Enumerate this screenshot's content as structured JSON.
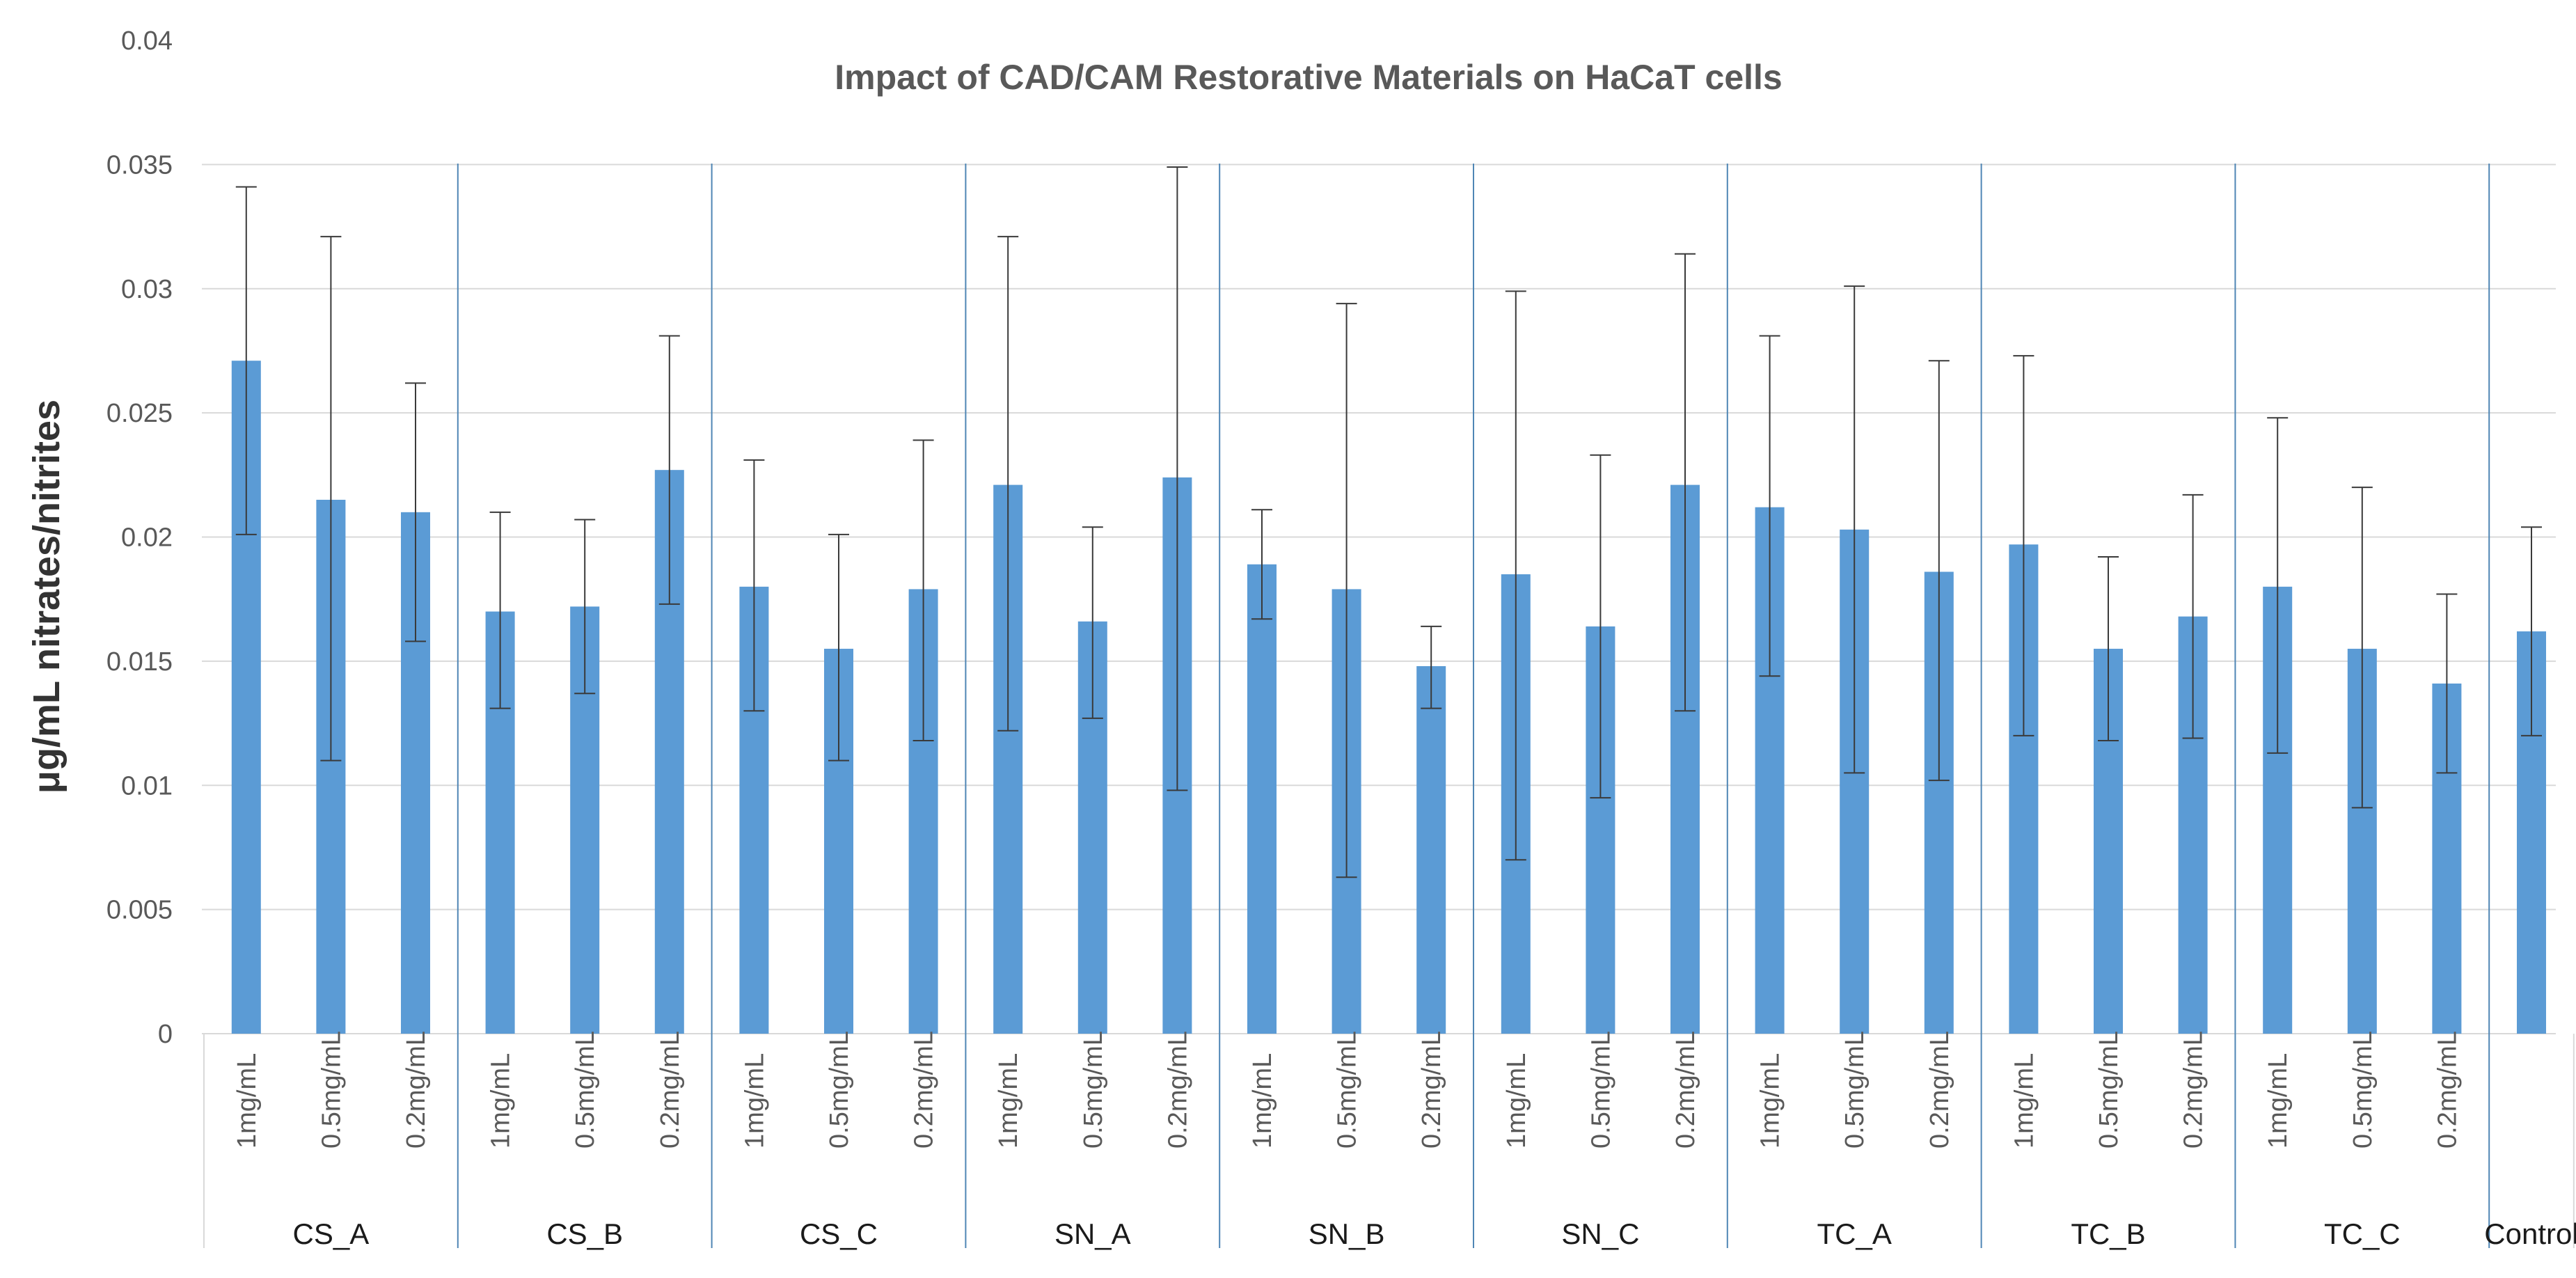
{
  "chart_data": {
    "type": "bar",
    "title": "Impact of CAD/CAM Restorative Materials on HaCaT cells",
    "ylabel": "μg/mL nitrates/nitrites",
    "xlabel": "",
    "ylim": [
      0,
      0.04
    ],
    "yticks": [
      "0",
      "0.005",
      "0.01",
      "0.015",
      "0.02",
      "0.025",
      "0.03",
      "0.035",
      "0.04"
    ],
    "grid": true,
    "colors": {
      "bar": "#5b9bd5",
      "grid": "#d9d9d9",
      "separator": "#4f86b5",
      "error": "#3a3a3a"
    },
    "groups": [
      {
        "name": "CS_A",
        "bars": [
          {
            "label": "1mg/mL",
            "value": 0.0271,
            "err_low": 0.0201,
            "err_high": 0.0341
          },
          {
            "label": "0.5mg/mL",
            "value": 0.0215,
            "err_low": 0.011,
            "err_high": 0.0321
          },
          {
            "label": "0.2mg/mL",
            "value": 0.021,
            "err_low": 0.0158,
            "err_high": 0.0262
          }
        ]
      },
      {
        "name": "CS_B",
        "bars": [
          {
            "label": "1mg/mL",
            "value": 0.017,
            "err_low": 0.0131,
            "err_high": 0.021
          },
          {
            "label": "0.5mg/mL",
            "value": 0.0172,
            "err_low": 0.0137,
            "err_high": 0.0207
          },
          {
            "label": "0.2mg/mL",
            "value": 0.0227,
            "err_low": 0.0173,
            "err_high": 0.0281
          }
        ]
      },
      {
        "name": "CS_C",
        "bars": [
          {
            "label": "1mg/mL",
            "value": 0.018,
            "err_low": 0.013,
            "err_high": 0.0231
          },
          {
            "label": "0.5mg/mL",
            "value": 0.0155,
            "err_low": 0.011,
            "err_high": 0.0201
          },
          {
            "label": "0.2mg/mL",
            "value": 0.0179,
            "err_low": 0.0118,
            "err_high": 0.0239
          }
        ]
      },
      {
        "name": "SN_A",
        "bars": [
          {
            "label": "1mg/mL",
            "value": 0.0221,
            "err_low": 0.0122,
            "err_high": 0.0321
          },
          {
            "label": "0.5mg/mL",
            "value": 0.0166,
            "err_low": 0.0127,
            "err_high": 0.0204
          },
          {
            "label": "0.2mg/mL",
            "value": 0.0224,
            "err_low": 0.0098,
            "err_high": 0.0349
          }
        ]
      },
      {
        "name": "SN_B",
        "bars": [
          {
            "label": "1mg/mL",
            "value": 0.0189,
            "err_low": 0.0167,
            "err_high": 0.0211
          },
          {
            "label": "0.5mg/mL",
            "value": 0.0179,
            "err_low": 0.0063,
            "err_high": 0.0294
          },
          {
            "label": "0.2mg/mL",
            "value": 0.0148,
            "err_low": 0.0131,
            "err_high": 0.0164
          }
        ]
      },
      {
        "name": "SN_C",
        "bars": [
          {
            "label": "1mg/mL",
            "value": 0.0185,
            "err_low": 0.007,
            "err_high": 0.0299
          },
          {
            "label": "0.5mg/mL",
            "value": 0.0164,
            "err_low": 0.0095,
            "err_high": 0.0233
          },
          {
            "label": "0.2mg/mL",
            "value": 0.0221,
            "err_low": 0.013,
            "err_high": 0.0314
          }
        ]
      },
      {
        "name": "TC_A",
        "bars": [
          {
            "label": "1mg/mL",
            "value": 0.0212,
            "err_low": 0.0144,
            "err_high": 0.0281
          },
          {
            "label": "0.5mg/mL",
            "value": 0.0203,
            "err_low": 0.0105,
            "err_high": 0.0301
          },
          {
            "label": "0.2mg/mL",
            "value": 0.0186,
            "err_low": 0.0102,
            "err_high": 0.0271
          }
        ]
      },
      {
        "name": "TC_B",
        "bars": [
          {
            "label": "1mg/mL",
            "value": 0.0197,
            "err_low": 0.012,
            "err_high": 0.0273
          },
          {
            "label": "0.5mg/mL",
            "value": 0.0155,
            "err_low": 0.0118,
            "err_high": 0.0192
          },
          {
            "label": "0.2mg/mL",
            "value": 0.0168,
            "err_low": 0.0119,
            "err_high": 0.0217
          }
        ]
      },
      {
        "name": "TC_C",
        "bars": [
          {
            "label": "1mg/mL",
            "value": 0.018,
            "err_low": 0.0113,
            "err_high": 0.0248
          },
          {
            "label": "0.5mg/mL",
            "value": 0.0155,
            "err_low": 0.0091,
            "err_high": 0.022
          },
          {
            "label": "0.2mg/mL",
            "value": 0.0141,
            "err_low": 0.0105,
            "err_high": 0.0177
          }
        ]
      },
      {
        "name": "Control",
        "bars": [
          {
            "label": "",
            "value": 0.0162,
            "err_low": 0.012,
            "err_high": 0.0204
          }
        ]
      }
    ]
  }
}
